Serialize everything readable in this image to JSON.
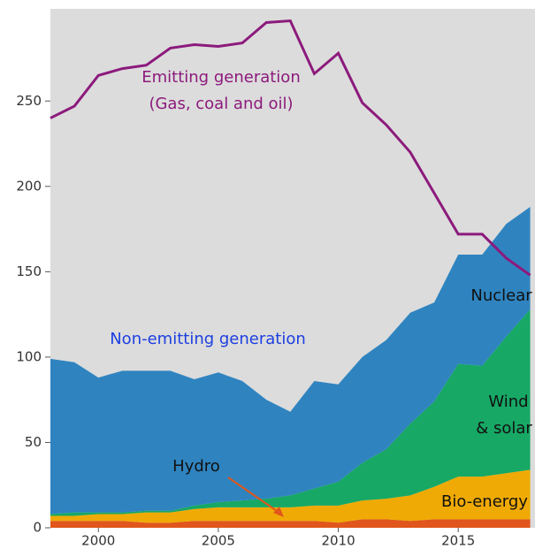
{
  "chart_data": {
    "type": "stacked-area",
    "x": [
      1998,
      1999,
      2000,
      2001,
      2002,
      2003,
      2004,
      2005,
      2006,
      2007,
      2008,
      2009,
      2010,
      2011,
      2012,
      2013,
      2014,
      2015,
      2016,
      2017,
      2018
    ],
    "xlim": [
      1998,
      2018.2
    ],
    "xticks": [
      2000,
      2005,
      2010,
      2015
    ],
    "ylim": [
      0,
      304
    ],
    "yticks": [
      0,
      50,
      100,
      150,
      200,
      250
    ],
    "series": [
      {
        "name": "Hydro",
        "color": "#e0561c",
        "values": [
          4,
          4,
          4,
          4,
          3,
          3,
          4,
          4,
          4,
          4,
          4,
          4,
          3,
          5,
          5,
          4,
          5,
          5,
          5,
          5,
          5
        ]
      },
      {
        "name": "Bio-energy",
        "color": "#f0aa05",
        "values": [
          3,
          3,
          4,
          4,
          6,
          6,
          7,
          8,
          8,
          8,
          8,
          9,
          10,
          11,
          12,
          15,
          19,
          25,
          25,
          27,
          29
        ]
      },
      {
        "name": "Wind & solar",
        "color": "#17a865",
        "values": [
          1,
          2,
          1,
          1,
          1,
          1,
          2,
          3,
          4,
          5,
          7,
          10,
          14,
          22,
          29,
          42,
          50,
          66,
          65,
          80,
          94
        ]
      },
      {
        "name": "Nuclear",
        "color": "#2f84c0",
        "values": [
          91,
          88,
          79,
          83,
          82,
          82,
          74,
          76,
          70,
          58,
          49,
          63,
          57,
          62,
          64,
          65,
          58,
          64,
          65,
          66,
          60
        ]
      }
    ],
    "line": {
      "name": "Emitting generation",
      "color": "#8c1a7c",
      "values": [
        240,
        247,
        265,
        269,
        271,
        281,
        283,
        282,
        284,
        296,
        297,
        266,
        278,
        249,
        236,
        220,
        196,
        172,
        172,
        158,
        148
      ]
    },
    "annotations": [
      "(Gas, coal and oil)",
      "Non-emitting generation"
    ]
  }
}
